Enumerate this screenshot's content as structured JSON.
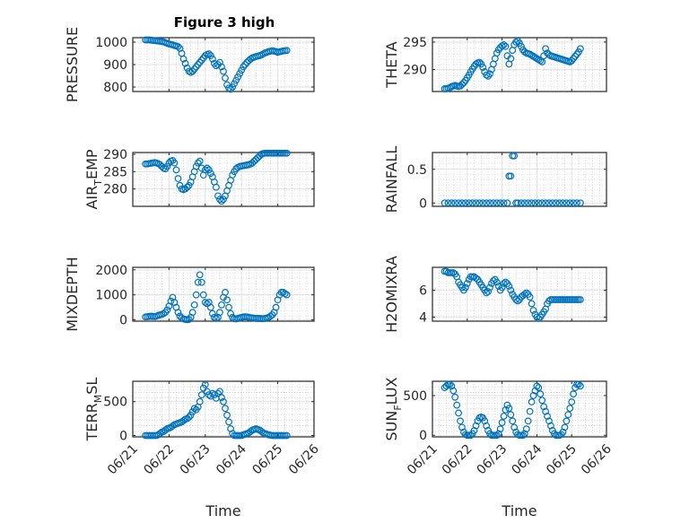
{
  "chart_data": [
    {
      "type": "scatter",
      "title": "Figure 3 high",
      "ylabel": "PRESSURE",
      "ylim": [
        780,
        1020
      ],
      "yticks": [
        "800",
        "900",
        "1000"
      ],
      "ytickvals": [
        800,
        900,
        1000
      ],
      "xlim": [
        0,
        5
      ],
      "x": [
        0.35,
        0.4,
        0.45,
        0.5,
        0.55,
        0.6,
        0.65,
        0.7,
        0.75,
        0.8,
        0.85,
        0.9,
        0.95,
        1.0,
        1.05,
        1.1,
        1.15,
        1.2,
        1.25,
        1.3,
        1.35,
        1.4,
        1.45,
        1.5,
        1.55,
        1.6,
        1.65,
        1.7,
        1.75,
        1.8,
        1.85,
        1.9,
        1.95,
        2.0,
        2.05,
        2.1,
        2.15,
        2.2,
        2.25,
        2.3,
        2.35,
        2.4,
        2.45,
        2.5,
        2.55,
        2.6,
        2.65,
        2.7,
        2.75,
        2.8,
        2.85,
        2.9,
        2.95,
        3.0,
        3.05,
        3.1,
        3.15,
        3.2,
        3.25,
        3.3,
        3.35,
        3.4,
        3.45,
        3.5,
        3.55,
        3.6,
        3.65,
        3.7,
        3.75,
        3.8,
        3.85,
        3.9,
        3.95,
        4.0,
        4.05,
        4.1,
        4.15,
        4.2,
        4.25
      ],
      "y": [
        1010,
        1010,
        1010,
        1009,
        1008,
        1007,
        1006,
        1005,
        1004,
        1003,
        1001,
        998,
        995,
        992,
        990,
        988,
        985,
        983,
        980,
        972,
        950,
        925,
        905,
        885,
        870,
        865,
        870,
        880,
        890,
        900,
        910,
        920,
        930,
        940,
        945,
        948,
        940,
        925,
        905,
        895,
        900,
        910,
        890,
        870,
        840,
        810,
        795,
        790,
        800,
        815,
        830,
        845,
        860,
        875,
        890,
        900,
        910,
        918,
        925,
        930,
        933,
        936,
        938,
        940,
        943,
        948,
        952,
        955,
        958,
        960,
        962,
        960,
        958,
        955,
        957,
        959,
        961,
        962,
        963
      ]
    },
    {
      "type": "scatter",
      "ylabel": "THETA",
      "ylim": [
        286,
        295.8
      ],
      "yticks": [
        "290",
        "295"
      ],
      "ytickvals": [
        290,
        295
      ],
      "xlim": [
        0,
        5
      ],
      "x": [
        0.35,
        0.4,
        0.45,
        0.5,
        0.55,
        0.6,
        0.65,
        0.7,
        0.75,
        0.8,
        0.85,
        0.9,
        0.95,
        1.0,
        1.05,
        1.1,
        1.15,
        1.2,
        1.25,
        1.3,
        1.35,
        1.4,
        1.45,
        1.5,
        1.55,
        1.6,
        1.65,
        1.7,
        1.75,
        1.8,
        1.85,
        1.9,
        1.95,
        2.0,
        2.05,
        2.1,
        2.15,
        2.2,
        2.25,
        2.3,
        2.35,
        2.4,
        2.45,
        2.5,
        2.55,
        2.6,
        2.65,
        2.7,
        2.75,
        2.8,
        2.85,
        2.9,
        2.95,
        3.0,
        3.05,
        3.1,
        3.15,
        3.2,
        3.25,
        3.3,
        3.35,
        3.4,
        3.45,
        3.5,
        3.55,
        3.6,
        3.65,
        3.7,
        3.75,
        3.8,
        3.85,
        3.9,
        3.95,
        4.0,
        4.05,
        4.1,
        4.15,
        4.2,
        4.25
      ],
      "y": [
        286.5,
        286.5,
        286.6,
        286.7,
        286.9,
        287.0,
        287.1,
        287.0,
        286.9,
        287.0,
        287.3,
        287.6,
        288.0,
        288.5,
        289.0,
        289.6,
        290.1,
        290.6,
        291.0,
        291.2,
        291.3,
        291.0,
        290.4,
        289.6,
        289.0,
        288.8,
        289.2,
        290.0,
        291.0,
        292.0,
        293.0,
        293.6,
        294.0,
        294.3,
        294.5,
        294.2,
        292.5,
        291.0,
        292.0,
        293.5,
        294.5,
        295.0,
        295.2,
        294.8,
        294.2,
        293.6,
        293.2,
        293.0,
        292.9,
        292.8,
        292.6,
        292.4,
        292.2,
        292.0,
        291.8,
        291.6,
        291.4,
        292.5,
        293.8,
        293.0,
        292.7,
        292.5,
        292.4,
        292.3,
        292.2,
        292.1,
        292.0,
        291.9,
        291.8,
        291.7,
        291.6,
        291.5,
        291.4,
        291.6,
        292.0,
        292.4,
        292.8,
        293.2,
        293.8
      ]
    },
    {
      "type": "scatter",
      "ylabel": "AIR_TEMP",
      "ylim": [
        275,
        290.5
      ],
      "yticks": [
        "280",
        "285",
        "290"
      ],
      "ytickvals": [
        280,
        285,
        290
      ],
      "xlim": [
        0,
        5
      ],
      "x": [
        0.35,
        0.4,
        0.45,
        0.5,
        0.55,
        0.6,
        0.65,
        0.7,
        0.75,
        0.8,
        0.85,
        0.9,
        0.95,
        1.0,
        1.05,
        1.1,
        1.15,
        1.2,
        1.25,
        1.3,
        1.35,
        1.4,
        1.45,
        1.5,
        1.55,
        1.6,
        1.65,
        1.7,
        1.75,
        1.8,
        1.85,
        1.9,
        1.95,
        2.0,
        2.05,
        2.1,
        2.15,
        2.2,
        2.25,
        2.3,
        2.35,
        2.4,
        2.45,
        2.5,
        2.55,
        2.6,
        2.65,
        2.7,
        2.75,
        2.8,
        2.85,
        2.9,
        2.95,
        3.0,
        3.05,
        3.1,
        3.15,
        3.2,
        3.25,
        3.3,
        3.35,
        3.4,
        3.45,
        3.5,
        3.55,
        3.6,
        3.65,
        3.7,
        3.75,
        3.8,
        3.85,
        3.9,
        3.95,
        4.0,
        4.05,
        4.1,
        4.15,
        4.2,
        4.25
      ],
      "y": [
        287.2,
        287.2,
        287.3,
        287.4,
        287.5,
        287.6,
        287.5,
        287.3,
        287.0,
        286.5,
        286.0,
        285.8,
        286.5,
        287.5,
        288.0,
        288.2,
        287.5,
        285.5,
        283.0,
        281.0,
        280.0,
        279.8,
        280.0,
        280.5,
        281.0,
        282.0,
        283.5,
        285.0,
        286.5,
        287.5,
        288.0,
        286.0,
        284.0,
        285.5,
        286.0,
        285.5,
        284.5,
        283.5,
        282.0,
        280.5,
        278.0,
        277.0,
        276.5,
        277.0,
        278.0,
        279.5,
        281.0,
        282.5,
        284.0,
        285.0,
        285.8,
        286.2,
        286.5,
        286.6,
        286.7,
        286.8,
        286.9,
        287.0,
        287.2,
        287.5,
        288.0,
        288.5,
        289.0,
        289.5,
        290.0,
        290.2,
        290.3,
        290.3,
        290.3,
        290.3,
        290.3,
        290.3,
        290.3,
        290.3,
        290.3,
        290.3,
        290.3,
        290.3,
        290.3
      ]
    },
    {
      "type": "scatter",
      "ylabel": "RAINFALL",
      "ylim": [
        -0.05,
        0.75
      ],
      "yticks": [
        "0",
        "0.5"
      ],
      "ytickvals": [
        0,
        0.5
      ],
      "xlim": [
        0,
        5
      ],
      "x": [
        0.35,
        0.45,
        0.55,
        0.65,
        0.75,
        0.85,
        0.95,
        1.05,
        1.15,
        1.25,
        1.35,
        1.45,
        1.55,
        1.65,
        1.75,
        1.85,
        1.95,
        2.05,
        2.15,
        2.2,
        2.25,
        2.3,
        2.35,
        2.4,
        2.45,
        2.55,
        2.65,
        2.75,
        2.85,
        2.95,
        3.05,
        3.15,
        3.25,
        3.35,
        3.45,
        3.55,
        3.65,
        3.75,
        3.85,
        3.95,
        4.05,
        4.15,
        4.25
      ],
      "y": [
        0,
        0,
        0,
        0,
        0,
        0,
        0,
        0,
        0,
        0,
        0,
        0,
        0,
        0,
        0,
        0,
        0,
        0,
        0,
        0.4,
        0.4,
        0.7,
        0.7,
        0,
        0,
        0,
        0,
        0,
        0,
        0,
        0,
        0,
        0,
        0,
        0,
        0,
        0,
        0,
        0,
        0,
        0,
        0,
        0
      ]
    },
    {
      "type": "scatter",
      "ylabel": "MIXDEPTH",
      "ylim": [
        -50,
        2100
      ],
      "yticks": [
        "0",
        "1000",
        "2000"
      ],
      "ytickvals": [
        0,
        1000,
        2000
      ],
      "xlim": [
        0,
        5
      ],
      "x": [
        0.35,
        0.4,
        0.45,
        0.5,
        0.55,
        0.6,
        0.65,
        0.7,
        0.75,
        0.8,
        0.85,
        0.9,
        0.95,
        1.0,
        1.05,
        1.1,
        1.15,
        1.2,
        1.25,
        1.3,
        1.35,
        1.4,
        1.45,
        1.5,
        1.55,
        1.6,
        1.65,
        1.7,
        1.75,
        1.8,
        1.85,
        1.9,
        1.95,
        2.0,
        2.05,
        2.1,
        2.15,
        2.2,
        2.25,
        2.3,
        2.35,
        2.4,
        2.45,
        2.5,
        2.55,
        2.6,
        2.65,
        2.7,
        2.75,
        2.8,
        2.85,
        2.9,
        2.95,
        3.0,
        3.05,
        3.1,
        3.15,
        3.2,
        3.25,
        3.3,
        3.35,
        3.4,
        3.45,
        3.5,
        3.55,
        3.6,
        3.65,
        3.7,
        3.75,
        3.8,
        3.85,
        3.9,
        3.95,
        4.0,
        4.05,
        4.1,
        4.15,
        4.2,
        4.25
      ],
      "y": [
        120,
        130,
        140,
        150,
        140,
        130,
        150,
        180,
        200,
        220,
        250,
        300,
        400,
        550,
        750,
        900,
        700,
        500,
        300,
        150,
        80,
        40,
        20,
        10,
        20,
        100,
        300,
        600,
        1000,
        1500,
        1800,
        1500,
        1000,
        700,
        650,
        700,
        500,
        250,
        100,
        60,
        100,
        300,
        600,
        900,
        1100,
        800,
        500,
        250,
        100,
        50,
        40,
        60,
        80,
        100,
        120,
        130,
        120,
        100,
        90,
        80,
        70,
        60,
        60,
        60,
        50,
        50,
        60,
        80,
        100,
        150,
        200,
        300,
        500,
        800,
        1000,
        1100,
        1100,
        1050,
        1000
      ]
    },
    {
      "type": "scatter",
      "ylabel": "H2OMIXRA",
      "ylim": [
        3.7,
        7.7
      ],
      "yticks": [
        "4",
        "6"
      ],
      "ytickvals": [
        4,
        6
      ],
      "xlim": [
        0,
        5
      ],
      "x": [
        0.35,
        0.4,
        0.45,
        0.5,
        0.55,
        0.6,
        0.65,
        0.7,
        0.75,
        0.8,
        0.85,
        0.9,
        0.95,
        1.0,
        1.05,
        1.1,
        1.15,
        1.2,
        1.25,
        1.3,
        1.35,
        1.4,
        1.45,
        1.5,
        1.55,
        1.6,
        1.65,
        1.7,
        1.75,
        1.8,
        1.85,
        1.9,
        1.95,
        2.0,
        2.05,
        2.1,
        2.15,
        2.2,
        2.25,
        2.3,
        2.35,
        2.4,
        2.45,
        2.5,
        2.55,
        2.6,
        2.65,
        2.7,
        2.75,
        2.8,
        2.85,
        2.9,
        2.95,
        3.0,
        3.05,
        3.1,
        3.15,
        3.2,
        3.25,
        3.3,
        3.35,
        3.4,
        3.45,
        3.5,
        3.55,
        3.6,
        3.65,
        3.7,
        3.75,
        3.8,
        3.85,
        3.9,
        3.95,
        4.0,
        4.05,
        4.1,
        4.15,
        4.2,
        4.25
      ],
      "y": [
        7.4,
        7.4,
        7.3,
        7.3,
        7.3,
        7.3,
        7.2,
        7.0,
        6.6,
        6.4,
        6.2,
        6.0,
        6.2,
        6.5,
        6.8,
        7.0,
        7.0,
        7.0,
        6.9,
        6.8,
        6.6,
        6.4,
        6.2,
        6.0,
        5.8,
        5.9,
        6.2,
        6.5,
        6.7,
        6.8,
        6.6,
        6.3,
        6.0,
        6.2,
        6.5,
        6.6,
        6.5,
        6.3,
        6.0,
        5.7,
        5.5,
        5.3,
        5.2,
        5.3,
        5.5,
        5.6,
        5.7,
        5.8,
        5.7,
        5.5,
        5.0,
        4.5,
        4.2,
        4.0,
        3.9,
        4.0,
        4.2,
        4.4,
        4.6,
        5.0,
        5.2,
        5.3,
        5.3,
        5.3,
        5.3,
        5.3,
        5.3,
        5.3,
        5.3,
        5.3,
        5.3,
        5.3,
        5.3,
        5.3,
        5.3,
        5.3,
        5.3,
        5.3,
        5.3
      ]
    },
    {
      "type": "scatter",
      "ylabel": "TERR_MSL",
      "ylim": [
        -20,
        800
      ],
      "yticks": [
        "0",
        "500"
      ],
      "ytickvals": [
        0,
        500
      ],
      "xlim": [
        0,
        5
      ],
      "x": [
        0.35,
        0.4,
        0.45,
        0.5,
        0.55,
        0.6,
        0.65,
        0.7,
        0.75,
        0.8,
        0.85,
        0.9,
        0.95,
        1.0,
        1.05,
        1.1,
        1.15,
        1.2,
        1.25,
        1.3,
        1.35,
        1.4,
        1.45,
        1.5,
        1.55,
        1.6,
        1.65,
        1.7,
        1.75,
        1.8,
        1.85,
        1.9,
        1.95,
        2.0,
        2.05,
        2.1,
        2.15,
        2.2,
        2.25,
        2.3,
        2.35,
        2.4,
        2.45,
        2.5,
        2.55,
        2.6,
        2.65,
        2.7,
        2.75,
        2.8,
        2.85,
        2.9,
        2.95,
        3.0,
        3.05,
        3.1,
        3.15,
        3.2,
        3.25,
        3.3,
        3.35,
        3.4,
        3.45,
        3.5,
        3.55,
        3.6,
        3.65,
        3.7,
        3.75,
        3.8,
        3.85,
        3.9,
        3.95,
        4.0,
        4.05,
        4.1,
        4.15,
        4.2,
        4.25
      ],
      "y": [
        0,
        0,
        0,
        0,
        0,
        0,
        0,
        10,
        30,
        50,
        60,
        80,
        100,
        110,
        120,
        140,
        160,
        170,
        180,
        190,
        200,
        220,
        240,
        250,
        270,
        300,
        350,
        400,
        380,
        420,
        500,
        600,
        700,
        750,
        650,
        600,
        580,
        620,
        600,
        550,
        620,
        650,
        560,
        500,
        400,
        300,
        200,
        100,
        30,
        0,
        0,
        0,
        0,
        0,
        10,
        20,
        30,
        40,
        60,
        80,
        90,
        100,
        90,
        80,
        60,
        40,
        30,
        20,
        10,
        5,
        0,
        0,
        0,
        0,
        0,
        0,
        0,
        0,
        0
      ]
    },
    {
      "type": "scatter",
      "ylabel": "SUN_FLUX",
      "ylim": [
        -20,
        680
      ],
      "yticks": [
        "0",
        "500"
      ],
      "ytickvals": [
        0,
        500
      ],
      "xlim": [
        0,
        5
      ],
      "x": [
        0.35,
        0.4,
        0.45,
        0.5,
        0.55,
        0.6,
        0.65,
        0.7,
        0.75,
        0.8,
        0.85,
        0.9,
        0.95,
        1.0,
        1.05,
        1.1,
        1.15,
        1.2,
        1.25,
        1.3,
        1.35,
        1.4,
        1.45,
        1.5,
        1.55,
        1.6,
        1.65,
        1.7,
        1.75,
        1.8,
        1.85,
        1.9,
        1.95,
        2.0,
        2.05,
        2.1,
        2.15,
        2.2,
        2.25,
        2.3,
        2.35,
        2.4,
        2.45,
        2.5,
        2.55,
        2.6,
        2.65,
        2.7,
        2.75,
        2.8,
        2.85,
        2.9,
        2.95,
        3.0,
        3.05,
        3.1,
        3.15,
        3.2,
        3.25,
        3.3,
        3.35,
        3.4,
        3.45,
        3.5,
        3.55,
        3.6,
        3.65,
        3.7,
        3.75,
        3.8,
        3.85,
        3.9,
        3.95,
        4.0,
        4.05,
        4.1,
        4.15,
        4.2,
        4.25
      ],
      "y": [
        600,
        620,
        640,
        640,
        620,
        560,
        480,
        380,
        280,
        180,
        100,
        40,
        10,
        0,
        0,
        0,
        20,
        60,
        120,
        180,
        220,
        230,
        220,
        180,
        120,
        60,
        20,
        0,
        0,
        0,
        0,
        20,
        80,
        160,
        240,
        320,
        380,
        340,
        260,
        180,
        100,
        40,
        10,
        0,
        0,
        0,
        20,
        80,
        180,
        300,
        420,
        500,
        560,
        620,
        600,
        520,
        440,
        360,
        300,
        240,
        180,
        120,
        60,
        20,
        0,
        0,
        0,
        10,
        40,
        100,
        180,
        260,
        340,
        420,
        520,
        600,
        640,
        640,
        620
      ]
    }
  ],
  "x_axis": {
    "tick_labels": [
      "06/21",
      "06/22",
      "06/23",
      "06/24",
      "06/25",
      "06/26"
    ],
    "label": "Time"
  },
  "colors": {
    "marker": "#0072BD",
    "grid": "#c8c8c8",
    "axis": "#262626"
  }
}
